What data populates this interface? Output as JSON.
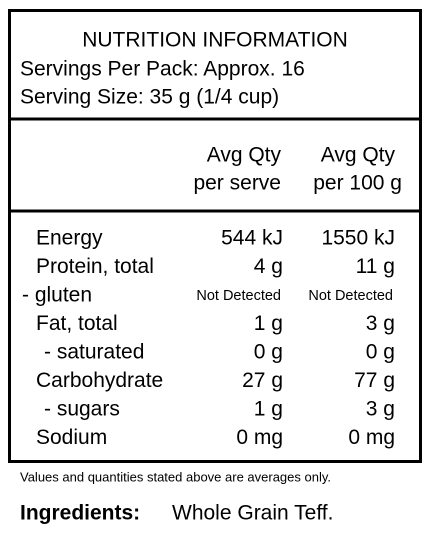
{
  "header": {
    "title": "NUTRITION INFORMATION",
    "servings": "Servings Per Pack: Approx. 16",
    "serving_size": "Serving Size: 35 g (1/4 cup)"
  },
  "table": {
    "columns": [
      [
        "Avg Qty",
        "per serve"
      ],
      [
        "Avg Qty",
        "per 100 g"
      ]
    ],
    "rows": [
      [
        "Energy",
        "544 kJ",
        "1550 kJ"
      ],
      [
        "Protein, total",
        "4 g",
        "11 g"
      ],
      [
        "- gluten",
        "Not Detected",
        "Not Detected"
      ],
      [
        "Fat, total",
        "1 g",
        "3 g"
      ],
      [
        "- saturated",
        "0 g",
        "0 g"
      ],
      [
        "Carbohydrate",
        "27 g",
        "77 g"
      ],
      [
        "- sugars",
        "1 g",
        "3 g"
      ],
      [
        "Sodium",
        "0 mg",
        "0 mg"
      ]
    ]
  },
  "footnote": "Values and quantities stated above are averages only.",
  "ingredients": {
    "label": "Ingredients:",
    "text": "Whole Grain Teff."
  }
}
